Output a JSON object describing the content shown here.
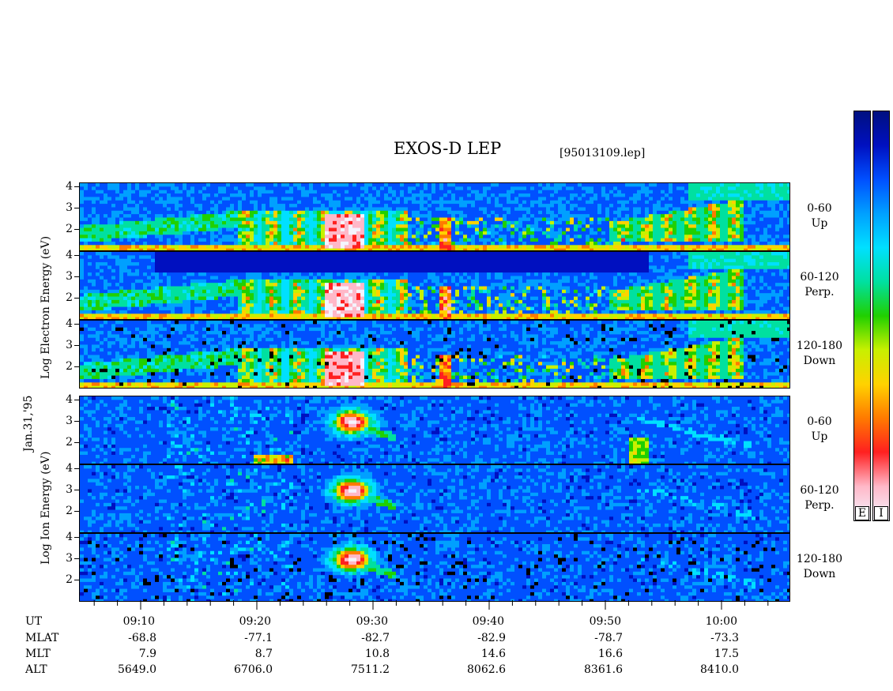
{
  "title": "EXOS-D LEP",
  "file_tag": "[95013109.lep]",
  "date_label": "Jan.31,'95",
  "chart_data": {
    "type": "heatmap",
    "x_time_range": [
      "09:05",
      "10:05"
    ],
    "x_ticks": [
      "09:10",
      "09:20",
      "09:30",
      "09:40",
      "09:50",
      "10:00"
    ],
    "groups": [
      {
        "name": "electron",
        "ylabel": "Log Electron Energy (eV)",
        "panels": [
          {
            "angle": "0-60",
            "dir": "Up",
            "y_ticks": [
              "4",
              "3",
              "2"
            ]
          },
          {
            "angle": "60-120",
            "dir": "Perp.",
            "y_ticks": [
              "4",
              "3",
              "2"
            ]
          },
          {
            "angle": "120-180",
            "dir": "Down",
            "y_ticks": [
              "4",
              "3",
              "2"
            ]
          }
        ]
      },
      {
        "name": "ion",
        "ylabel": "Log Ion Energy (eV)",
        "panels": [
          {
            "angle": "0-60",
            "dir": "Up",
            "y_ticks": [
              "4",
              "3",
              "2"
            ]
          },
          {
            "angle": "60-120",
            "dir": "Perp.",
            "y_ticks": [
              "4",
              "3",
              "2"
            ]
          },
          {
            "angle": "120-180",
            "dir": "Down",
            "y_ticks": [
              "4",
              "3",
              "2"
            ]
          }
        ]
      }
    ],
    "orbit_table": {
      "rows": [
        {
          "label": "UT",
          "values": [
            "09:10",
            "09:20",
            "09:30",
            "09:40",
            "09:50",
            "10:00"
          ]
        },
        {
          "label": "MLAT",
          "values": [
            "-68.8",
            "-77.1",
            "-82.7",
            "-82.9",
            "-78.7",
            "-73.3"
          ]
        },
        {
          "label": "MLT",
          "values": [
            "7.9",
            "8.7",
            "10.8",
            "14.6",
            "16.6",
            "17.5"
          ]
        },
        {
          "label": "ALT",
          "values": [
            "5649.0",
            "6706.0",
            "7511.2",
            "8062.6",
            "8361.6",
            "8410.0"
          ]
        }
      ]
    },
    "colorbars": [
      {
        "label": "E"
      },
      {
        "label": "I"
      }
    ],
    "colorscale": [
      "#f4f4ff",
      "#ffb8c8",
      "#ff2020",
      "#ff7a00",
      "#ffd200",
      "#c8f000",
      "#20d000",
      "#00e0a0",
      "#00e0ff",
      "#00a0ff",
      "#0050ff",
      "#0010c0",
      "#001080"
    ]
  }
}
